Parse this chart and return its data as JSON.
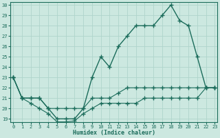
{
  "xlabel": "Humidex (Indice chaleur)",
  "ylabel": "",
  "bg_color": "#cce8e0",
  "grid_color": "#afd4cb",
  "line_color": "#1a6b5a",
  "x": [
    0,
    1,
    2,
    3,
    4,
    5,
    6,
    7,
    8,
    9,
    10,
    11,
    12,
    13,
    14,
    15,
    16,
    17,
    18,
    19,
    20,
    21,
    22,
    23
  ],
  "upper_y": [
    23,
    21,
    21,
    21,
    20,
    19,
    19,
    19,
    20,
    23,
    25,
    24,
    26,
    27,
    28,
    28,
    28,
    29,
    30,
    28.5,
    28,
    25,
    22,
    22
  ],
  "middle_y": [
    23,
    21,
    21,
    21,
    20,
    20,
    20,
    20,
    20,
    21,
    21,
    21,
    21.5,
    22,
    22,
    22,
    22,
    22,
    22,
    22,
    22,
    22,
    22,
    22
  ],
  "lower_y": [
    23,
    21,
    20.5,
    20,
    19.5,
    18.7,
    18.7,
    18.8,
    19.5,
    20,
    20.5,
    20.5,
    20.5,
    20.5,
    20.5,
    21,
    21,
    21,
    21,
    21,
    21,
    21,
    22,
    22
  ],
  "ylim": [
    19,
    30
  ],
  "xlim": [
    0,
    23
  ],
  "yticks": [
    19,
    20,
    21,
    22,
    23,
    24,
    25,
    26,
    27,
    28,
    29,
    30
  ],
  "xticks": [
    0,
    1,
    2,
    3,
    4,
    5,
    6,
    7,
    8,
    9,
    10,
    11,
    12,
    13,
    14,
    15,
    16,
    17,
    18,
    19,
    20,
    21,
    22,
    23
  ]
}
